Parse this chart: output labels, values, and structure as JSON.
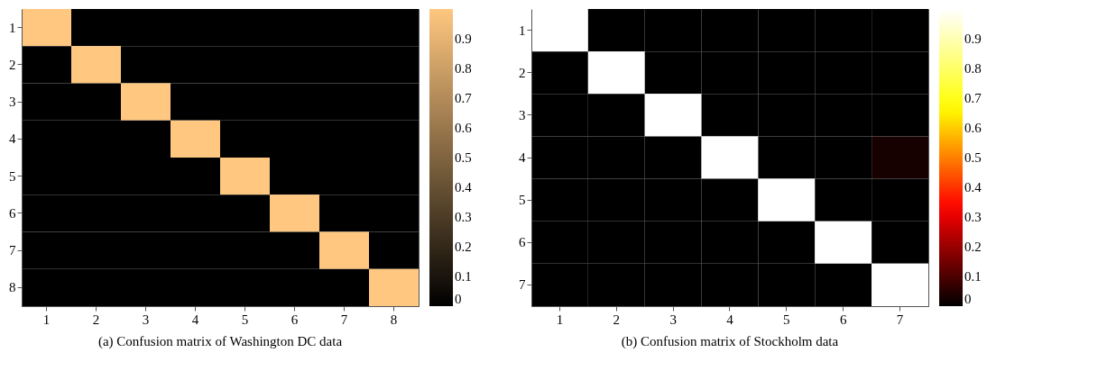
{
  "chart_data": [
    {
      "type": "heatmap",
      "categories": [
        "1",
        "2",
        "3",
        "4",
        "5",
        "6",
        "7",
        "8"
      ],
      "y_categories": [
        "1",
        "2",
        "3",
        "4",
        "5",
        "6",
        "7",
        "8"
      ],
      "cells": [
        [
          1,
          0,
          0,
          0,
          0,
          0,
          0,
          0
        ],
        [
          0,
          1,
          0,
          0,
          0,
          0,
          0,
          0
        ],
        [
          0,
          0,
          1,
          0,
          0,
          0,
          0,
          0
        ],
        [
          0,
          0,
          0,
          1,
          0,
          0,
          0,
          0
        ],
        [
          0,
          0,
          0,
          0,
          1,
          0,
          0,
          0
        ],
        [
          0,
          0,
          0,
          0,
          0,
          1,
          0,
          0
        ],
        [
          0,
          0,
          0,
          0,
          0,
          0,
          1,
          0
        ],
        [
          0,
          0,
          0,
          0,
          0,
          0,
          0,
          1
        ]
      ],
      "clim": [
        0,
        1
      ],
      "cticks": [
        0,
        0.1,
        0.2,
        0.3,
        0.4,
        0.5,
        0.6,
        0.7,
        0.8,
        0.9
      ],
      "colors": [
        "#000000",
        "#ffc77f"
      ],
      "annotations": [
        "(a) Confusion matrix of Washington DC data"
      ]
    },
    {
      "type": "heatmap",
      "categories": [
        "1",
        "2",
        "3",
        "4",
        "5",
        "6",
        "7"
      ],
      "y_categories": [
        "1",
        "2",
        "3",
        "4",
        "5",
        "6",
        "7"
      ],
      "cells": [
        [
          1,
          0,
          0,
          0,
          0,
          0,
          0
        ],
        [
          0,
          1,
          0,
          0,
          0,
          0,
          0
        ],
        [
          0,
          0,
          1,
          0,
          0,
          0,
          0
        ],
        [
          0,
          0,
          0,
          1,
          0,
          0,
          0.03
        ],
        [
          0,
          0,
          0,
          0,
          1,
          0,
          0
        ],
        [
          0,
          0,
          0,
          0,
          0,
          1,
          0
        ],
        [
          0,
          0,
          0,
          0,
          0,
          0,
          1
        ]
      ],
      "clim": [
        0,
        1
      ],
      "cticks": [
        0,
        0.1,
        0.2,
        0.3,
        0.4,
        0.5,
        0.6,
        0.7,
        0.8,
        0.9
      ],
      "colors": [
        "#000000",
        "#ff0000",
        "#ffff00",
        "#ffffff"
      ],
      "annotations": [
        "(b) Confusion matrix of Stockholm data"
      ]
    }
  ]
}
